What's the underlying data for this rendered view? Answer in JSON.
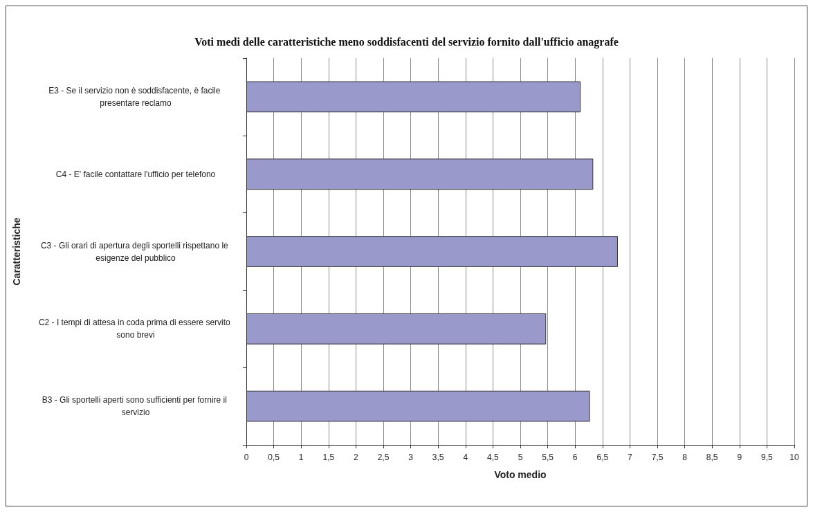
{
  "chart_data": {
    "type": "bar",
    "orientation": "horizontal",
    "title": "Voti medi delle caratteristiche meno soddisfacenti del servizio fornito dall'ufficio anagrafe",
    "xlabel": "Voto medio",
    "ylabel": "Caratteristiche",
    "categories": [
      "E3 - Se il servizio non è soddisfacente, è facile presentare reclamo",
      "C4 - E' facile contattare l'ufficio per telefono",
      "C3 - Gli orari di apertura degli sportelli rispettano le esigenze del pubblico",
      "C2 - I tempi di attesa in coda prima di essere servito sono brevi",
      "B3 - Gli sportelli aperti sono sufficienti per fornire il servizio"
    ],
    "values": [
      6.1,
      6.33,
      6.78,
      5.47,
      6.27
    ],
    "color": "#9999cc",
    "xlim": [
      0,
      10
    ],
    "xticks": [
      0,
      {
        "value": 0.5,
        "label": "0,5"
      },
      1,
      {
        "value": 1.5,
        "label": "1,5"
      },
      2,
      {
        "value": 2.5,
        "label": "2,5"
      },
      3,
      {
        "value": 3.5,
        "label": "3,5"
      },
      4,
      {
        "value": 4.5,
        "label": "4,5"
      },
      5,
      {
        "value": 5.5,
        "label": "5,5"
      },
      6,
      {
        "value": 6.5,
        "label": "6,5"
      },
      7,
      {
        "value": 7.5,
        "label": "7,5"
      },
      8,
      {
        "value": 8.5,
        "label": "8,5"
      },
      9,
      {
        "value": 9.5,
        "label": "9,5"
      },
      10
    ],
    "grid": "x"
  }
}
